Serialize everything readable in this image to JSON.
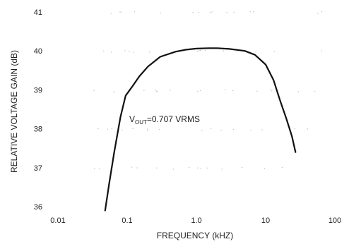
{
  "chart_data": {
    "type": "line",
    "xlabel": "FREQUENCY (kHZ)",
    "ylabel": "RELATIVE VOLTAGE GAIN (dB)",
    "x_scale": "log",
    "xlim": [
      0.01,
      100
    ],
    "ylim": [
      36,
      41
    ],
    "x_ticks": [
      0.01,
      0.1,
      1.0,
      10,
      100
    ],
    "x_tick_labels": [
      "0.01",
      "0.1",
      "1.0",
      "10",
      "100"
    ],
    "y_ticks": [
      36,
      37,
      38,
      39,
      40,
      41
    ],
    "y_tick_labels": [
      "36",
      "37",
      "38",
      "39",
      "40",
      "41"
    ],
    "grid": false,
    "annotation": {
      "v": "V",
      "sub": "OUT",
      "rest": "=0.707 VRMS"
    },
    "series": [
      {
        "x": [
          0.048,
          0.055,
          0.065,
          0.08,
          0.095,
          0.12,
          0.15,
          0.2,
          0.3,
          0.5,
          0.7,
          1.0,
          1.5,
          2.0,
          3.0,
          5.0,
          7.0,
          10.0,
          13.0,
          16.0,
          20.0,
          24.0,
          27.0
        ],
        "y": [
          35.9,
          36.6,
          37.4,
          38.3,
          38.85,
          39.1,
          39.35,
          39.6,
          39.85,
          39.98,
          40.03,
          40.06,
          40.07,
          40.07,
          40.05,
          40.0,
          39.9,
          39.65,
          39.25,
          38.75,
          38.25,
          37.8,
          37.4
        ]
      }
    ]
  }
}
